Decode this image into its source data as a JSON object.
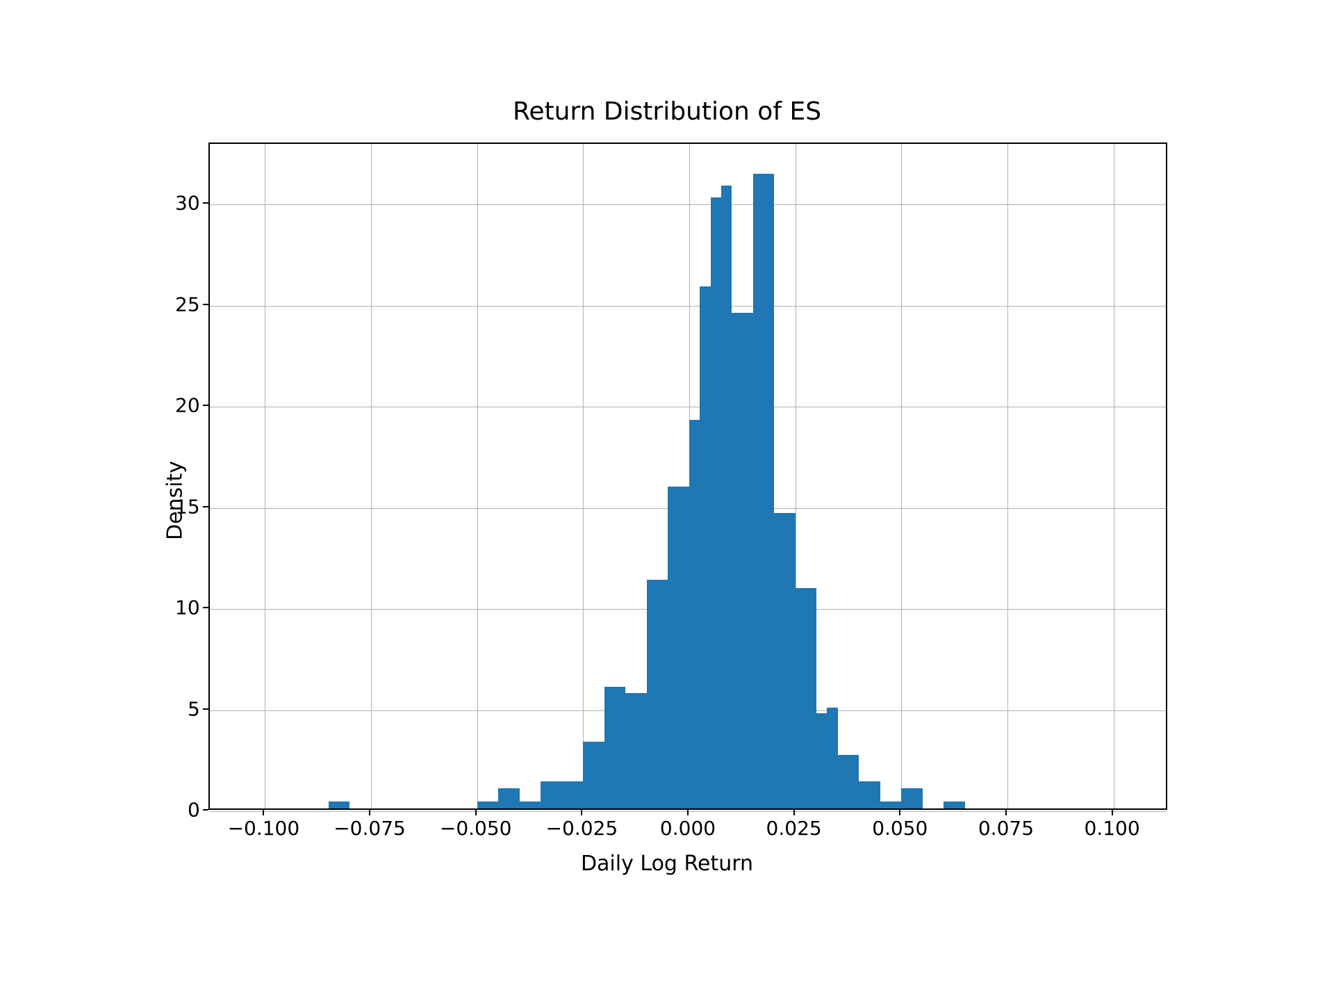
{
  "chart": {
    "type": "histogram",
    "title": "Return Distribution of ES",
    "title_fontsize": 36,
    "xlabel": "Daily Log Return",
    "ylabel": "Density",
    "label_fontsize": 30,
    "tick_fontsize": 28,
    "background_color": "#ffffff",
    "border_color": "#000000",
    "grid_color": "#b0b0b0",
    "bar_color": "#1f77b4",
    "xlim": [
      -0.113,
      0.113
    ],
    "ylim": [
      0,
      33
    ],
    "xticks": [
      -0.1,
      -0.075,
      -0.05,
      -0.025,
      0.0,
      0.025,
      0.05,
      0.075,
      0.1
    ],
    "xtick_labels": [
      "−0.100",
      "−0.075",
      "−0.050",
      "−0.025",
      "0.000",
      "0.025",
      "0.050",
      "0.075",
      "0.100"
    ],
    "yticks": [
      0,
      5,
      10,
      15,
      20,
      25,
      30
    ],
    "ytick_labels": [
      "0",
      "5",
      "10",
      "15",
      "20",
      "25",
      "30"
    ],
    "bins": [
      {
        "x_start": -0.085,
        "x_end": -0.08,
        "density": 0.35
      },
      {
        "x_start": -0.05,
        "x_end": -0.045,
        "density": 0.35
      },
      {
        "x_start": -0.045,
        "x_end": -0.04,
        "density": 1.0
      },
      {
        "x_start": -0.04,
        "x_end": -0.035,
        "density": 0.35
      },
      {
        "x_start": -0.035,
        "x_end": -0.03,
        "density": 1.35
      },
      {
        "x_start": -0.03,
        "x_end": -0.025,
        "density": 1.35
      },
      {
        "x_start": -0.025,
        "x_end": -0.02,
        "density": 3.3
      },
      {
        "x_start": -0.02,
        "x_end": -0.015,
        "density": 6.0
      },
      {
        "x_start": -0.015,
        "x_end": -0.01,
        "density": 5.7
      },
      {
        "x_start": -0.01,
        "x_end": -0.005,
        "density": 11.3
      },
      {
        "x_start": -0.005,
        "x_end": 0.0,
        "density": 15.9
      },
      {
        "x_start": 0.0,
        "x_end": 0.0025,
        "density": 19.2
      },
      {
        "x_start": 0.0025,
        "x_end": 0.005,
        "density": 25.8
      },
      {
        "x_start": 0.005,
        "x_end": 0.0075,
        "density": 30.2
      },
      {
        "x_start": 0.0075,
        "x_end": 0.01,
        "density": 30.8
      },
      {
        "x_start": 0.01,
        "x_end": 0.015,
        "density": 24.5
      },
      {
        "x_start": 0.015,
        "x_end": 0.02,
        "density": 31.4
      },
      {
        "x_start": 0.02,
        "x_end": 0.025,
        "density": 14.6
      },
      {
        "x_start": 0.025,
        "x_end": 0.03,
        "density": 10.9
      },
      {
        "x_start": 0.03,
        "x_end": 0.0325,
        "density": 4.7
      },
      {
        "x_start": 0.0325,
        "x_end": 0.035,
        "density": 5.0
      },
      {
        "x_start": 0.035,
        "x_end": 0.04,
        "density": 2.65
      },
      {
        "x_start": 0.04,
        "x_end": 0.045,
        "density": 1.35
      },
      {
        "x_start": 0.045,
        "x_end": 0.05,
        "density": 0.35
      },
      {
        "x_start": 0.05,
        "x_end": 0.055,
        "density": 1.0
      },
      {
        "x_start": 0.06,
        "x_end": 0.065,
        "density": 0.35
      }
    ]
  }
}
